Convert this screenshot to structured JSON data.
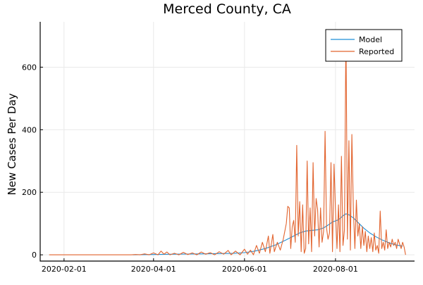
{
  "chart_data": {
    "type": "line",
    "title": "Merced County, CA",
    "xlabel": "",
    "ylabel": "New Cases Per Day",
    "x_axis_type": "date",
    "xlim": [
      "2020-01-16",
      "2020-09-23"
    ],
    "ylim": [
      -20,
      745
    ],
    "grid": true,
    "legend_position": "top-right",
    "x_ticks": [
      "2020-02-01",
      "2020-04-01",
      "2020-06-01",
      "2020-08-01"
    ],
    "y_ticks": [
      0,
      200,
      400,
      600
    ],
    "colors": {
      "Model": "#1f8fd6",
      "Reported": "#e2642f"
    },
    "series": [
      {
        "name": "Model",
        "points": [
          [
            "2020-03-18",
            0
          ],
          [
            "2020-04-01",
            1
          ],
          [
            "2020-04-15",
            2
          ],
          [
            "2020-05-01",
            3
          ],
          [
            "2020-05-15",
            4
          ],
          [
            "2020-05-25",
            5
          ],
          [
            "2020-06-01",
            7
          ],
          [
            "2020-06-08",
            12
          ],
          [
            "2020-06-15",
            20
          ],
          [
            "2020-06-22",
            32
          ],
          [
            "2020-06-29",
            48
          ],
          [
            "2020-07-04",
            60
          ],
          [
            "2020-07-08",
            70
          ],
          [
            "2020-07-12",
            76
          ],
          [
            "2020-07-16",
            78
          ],
          [
            "2020-07-20",
            80
          ],
          [
            "2020-07-24",
            86
          ],
          [
            "2020-07-27",
            95
          ],
          [
            "2020-07-30",
            105
          ],
          [
            "2020-08-02",
            110
          ],
          [
            "2020-08-04",
            116
          ],
          [
            "2020-08-06",
            125
          ],
          [
            "2020-08-08",
            131
          ],
          [
            "2020-08-10",
            128
          ],
          [
            "2020-08-13",
            118
          ],
          [
            "2020-08-16",
            104
          ],
          [
            "2020-08-20",
            85
          ],
          [
            "2020-08-24",
            70
          ],
          [
            "2020-08-28",
            58
          ],
          [
            "2020-09-01",
            48
          ],
          [
            "2020-09-05",
            40
          ],
          [
            "2020-09-10",
            32
          ],
          [
            "2020-09-15",
            28
          ]
        ]
      },
      {
        "name": "Reported",
        "points": [
          [
            "2020-01-22",
            0
          ],
          [
            "2020-03-17",
            0
          ],
          [
            "2020-03-20",
            1
          ],
          [
            "2020-03-23",
            0
          ],
          [
            "2020-03-26",
            3
          ],
          [
            "2020-03-29",
            0
          ],
          [
            "2020-04-01",
            6
          ],
          [
            "2020-04-04",
            0
          ],
          [
            "2020-04-06",
            12
          ],
          [
            "2020-04-08",
            2
          ],
          [
            "2020-04-10",
            9
          ],
          [
            "2020-04-12",
            0
          ],
          [
            "2020-04-15",
            5
          ],
          [
            "2020-04-18",
            0
          ],
          [
            "2020-04-21",
            8
          ],
          [
            "2020-04-24",
            1
          ],
          [
            "2020-04-27",
            6
          ],
          [
            "2020-04-30",
            0
          ],
          [
            "2020-05-03",
            9
          ],
          [
            "2020-05-06",
            2
          ],
          [
            "2020-05-09",
            7
          ],
          [
            "2020-05-12",
            0
          ],
          [
            "2020-05-15",
            10
          ],
          [
            "2020-05-18",
            2
          ],
          [
            "2020-05-21",
            14
          ],
          [
            "2020-05-23",
            0
          ],
          [
            "2020-05-26",
            12
          ],
          [
            "2020-05-29",
            0
          ],
          [
            "2020-06-01",
            18
          ],
          [
            "2020-06-03",
            2
          ],
          [
            "2020-06-05",
            15
          ],
          [
            "2020-06-07",
            0
          ],
          [
            "2020-06-09",
            30
          ],
          [
            "2020-06-11",
            5
          ],
          [
            "2020-06-13",
            40
          ],
          [
            "2020-06-15",
            10
          ],
          [
            "2020-06-17",
            60
          ],
          [
            "2020-06-18",
            5
          ],
          [
            "2020-06-20",
            65
          ],
          [
            "2020-06-21",
            10
          ],
          [
            "2020-06-23",
            40
          ],
          [
            "2020-06-25",
            15
          ],
          [
            "2020-06-27",
            50
          ],
          [
            "2020-06-29",
            100
          ],
          [
            "2020-06-30",
            155
          ],
          [
            "2020-07-01",
            150
          ],
          [
            "2020-07-02",
            20
          ],
          [
            "2020-07-03",
            90
          ],
          [
            "2020-07-04",
            110
          ],
          [
            "2020-07-05",
            40
          ],
          [
            "2020-07-06",
            350
          ],
          [
            "2020-07-07",
            60
          ],
          [
            "2020-07-08",
            170
          ],
          [
            "2020-07-09",
            10
          ],
          [
            "2020-07-10",
            160
          ],
          [
            "2020-07-11",
            5
          ],
          [
            "2020-07-12",
            20
          ],
          [
            "2020-07-13",
            300
          ],
          [
            "2020-07-14",
            35
          ],
          [
            "2020-07-15",
            150
          ],
          [
            "2020-07-16",
            10
          ],
          [
            "2020-07-17",
            295
          ],
          [
            "2020-07-18",
            60
          ],
          [
            "2020-07-19",
            180
          ],
          [
            "2020-07-20",
            145
          ],
          [
            "2020-07-21",
            25
          ],
          [
            "2020-07-22",
            150
          ],
          [
            "2020-07-23",
            40
          ],
          [
            "2020-07-24",
            75
          ],
          [
            "2020-07-25",
            395
          ],
          [
            "2020-07-26",
            85
          ],
          [
            "2020-07-27",
            50
          ],
          [
            "2020-07-28",
            70
          ],
          [
            "2020-07-29",
            295
          ],
          [
            "2020-07-30",
            10
          ],
          [
            "2020-07-31",
            290
          ],
          [
            "2020-08-01",
            140
          ],
          [
            "2020-08-02",
            20
          ],
          [
            "2020-08-03",
            160
          ],
          [
            "2020-08-04",
            10
          ],
          [
            "2020-08-05",
            315
          ],
          [
            "2020-08-06",
            30
          ],
          [
            "2020-08-07",
            80
          ],
          [
            "2020-08-08",
            720
          ],
          [
            "2020-08-09",
            50
          ],
          [
            "2020-08-10",
            365
          ],
          [
            "2020-08-11",
            15
          ],
          [
            "2020-08-12",
            385
          ],
          [
            "2020-08-13",
            140
          ],
          [
            "2020-08-14",
            20
          ],
          [
            "2020-08-15",
            175
          ],
          [
            "2020-08-16",
            60
          ],
          [
            "2020-08-17",
            100
          ],
          [
            "2020-08-18",
            20
          ],
          [
            "2020-08-19",
            90
          ],
          [
            "2020-08-20",
            30
          ],
          [
            "2020-08-21",
            75
          ],
          [
            "2020-08-22",
            10
          ],
          [
            "2020-08-23",
            60
          ],
          [
            "2020-08-24",
            20
          ],
          [
            "2020-08-25",
            55
          ],
          [
            "2020-08-26",
            10
          ],
          [
            "2020-08-27",
            70
          ],
          [
            "2020-08-28",
            15
          ],
          [
            "2020-08-29",
            30
          ],
          [
            "2020-08-30",
            5
          ],
          [
            "2020-08-31",
            140
          ],
          [
            "2020-09-01",
            20
          ],
          [
            "2020-09-02",
            40
          ],
          [
            "2020-09-03",
            15
          ],
          [
            "2020-09-04",
            80
          ],
          [
            "2020-09-05",
            20
          ],
          [
            "2020-09-06",
            40
          ],
          [
            "2020-09-07",
            25
          ],
          [
            "2020-09-08",
            50
          ],
          [
            "2020-09-09",
            30
          ],
          [
            "2020-09-10",
            40
          ],
          [
            "2020-09-11",
            20
          ],
          [
            "2020-09-12",
            50
          ],
          [
            "2020-09-13",
            35
          ],
          [
            "2020-09-14",
            20
          ],
          [
            "2020-09-15",
            40
          ],
          [
            "2020-09-16",
            25
          ],
          [
            "2020-09-17",
            0
          ]
        ]
      }
    ]
  }
}
